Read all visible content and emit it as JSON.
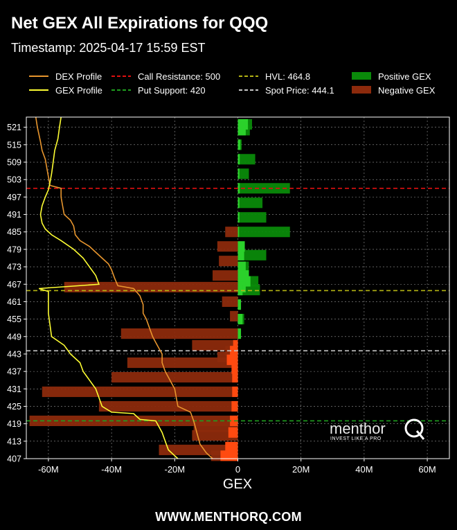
{
  "header": {
    "title": "Net GEX All Expirations for QQQ",
    "subtitle": "Timestamp: 2025-04-17 15:59 EST"
  },
  "footer": {
    "text": "WWW.MENTHORQ.COM"
  },
  "watermark": {
    "brand": "menthorQ",
    "tagline": "INVEST LIKE A PRO"
  },
  "colors": {
    "positive_gex": "#2bd12b",
    "negative_gex": "#8c2a0c",
    "dex_profile": "#e8962e",
    "gex_profile": "#ffff33",
    "call_resistance": "#e01010",
    "put_support": "#1fa01f",
    "hvl": "#b5b514",
    "spot_price": "#c8c8c8"
  },
  "chart_data": {
    "type": "bar",
    "orientation": "horizontal",
    "xlabel": "GEX",
    "ylabel": "",
    "xlim": [
      -67,
      67
    ],
    "xticks": [
      -60,
      -40,
      -20,
      0,
      20,
      40,
      60
    ],
    "xtick_labels": [
      "-60M",
      "-40M",
      "-20M",
      "0",
      "20M",
      "40M",
      "60M"
    ],
    "ylim": [
      407,
      524.5
    ],
    "yticks": [
      407,
      413,
      419,
      425,
      431,
      437,
      443,
      449,
      455,
      461,
      467,
      473,
      479,
      485,
      491,
      497,
      503,
      509,
      515,
      521
    ],
    "grid": true,
    "legend_position": "top",
    "legend": [
      {
        "label": "DEX Profile",
        "style": "line",
        "color": "#e8962e"
      },
      {
        "label": "GEX Profile",
        "style": "line",
        "color": "#ffff33"
      },
      {
        "label": "Call Resistance: 500",
        "style": "dashed",
        "color": "#e01010"
      },
      {
        "label": "Put Support: 420",
        "style": "dashed",
        "color": "#1fa01f"
      },
      {
        "label": "HVL: 464.8",
        "style": "dashed",
        "color": "#b5b514"
      },
      {
        "label": "Spot Price: 444.1",
        "style": "dashed",
        "color": "#c8c8c8"
      },
      {
        "label": "Positive GEX",
        "style": "patch",
        "color": "#0a8a0a"
      },
      {
        "label": "Negative GEX",
        "style": "patch",
        "color": "#8c2a0c"
      }
    ],
    "levels": [
      {
        "name": "Call Resistance",
        "value": 500,
        "color": "#e01010"
      },
      {
        "name": "Put Support",
        "value": 420,
        "color": "#1fa01f"
      },
      {
        "name": "HVL",
        "value": 464.8,
        "color": "#b5b514"
      },
      {
        "name": "Spot Price",
        "value": 444.1,
        "color": "#c8c8c8"
      }
    ],
    "aggregate_bars": [
      {
        "strike": 522,
        "value": 4.5
      },
      {
        "strike": 520,
        "value": 3.8
      },
      {
        "strike": 515,
        "value": 1.2
      },
      {
        "strike": 510,
        "value": 5.5
      },
      {
        "strike": 505,
        "value": 3.5
      },
      {
        "strike": 500,
        "value": 16.5
      },
      {
        "strike": 495,
        "value": 7.8
      },
      {
        "strike": 490,
        "value": 9.0
      },
      {
        "strike": 485,
        "value": 16.5
      },
      {
        "strike": 485,
        "value": -4.0
      },
      {
        "strike": 480,
        "value": -6.5
      },
      {
        "strike": 477,
        "value": 9.0
      },
      {
        "strike": 475,
        "value": -6.0
      },
      {
        "strike": 473,
        "value": 3.5
      },
      {
        "strike": 470,
        "value": -8.0
      },
      {
        "strike": 468,
        "value": 6.5
      },
      {
        "strike": 466,
        "value": -55.0
      },
      {
        "strike": 465,
        "value": 7.0
      },
      {
        "strike": 461,
        "value": -5.0
      },
      {
        "strike": 456,
        "value": -2.5
      },
      {
        "strike": 455,
        "value": 2.0
      },
      {
        "strike": 450,
        "value": -37.0
      },
      {
        "strike": 446,
        "value": -14.5
      },
      {
        "strike": 444,
        "value": -4.0
      },
      {
        "strike": 442,
        "value": -6.5
      },
      {
        "strike": 440,
        "value": -35.0
      },
      {
        "strike": 435,
        "value": -40.0
      },
      {
        "strike": 430,
        "value": -62.0
      },
      {
        "strike": 425,
        "value": -44.0
      },
      {
        "strike": 420,
        "value": -66.0
      },
      {
        "strike": 418,
        "value": -14.0
      },
      {
        "strike": 415,
        "value": -14.5
      },
      {
        "strike": 410,
        "value": -25.0
      },
      {
        "strike": 408,
        "value": -8.5
      }
    ],
    "bright_bars": [
      {
        "strike": 522,
        "value": 3.2
      },
      {
        "strike": 520,
        "value": 2.5
      },
      {
        "strike": 515,
        "value": 0.8
      },
      {
        "strike": 510,
        "value": 0.6
      },
      {
        "strike": 505,
        "value": 0.5
      },
      {
        "strike": 500,
        "value": 0.6
      },
      {
        "strike": 495,
        "value": 0.5
      },
      {
        "strike": 490,
        "value": 0.5
      },
      {
        "strike": 485,
        "value": 0.4
      },
      {
        "strike": 480,
        "value": 2.2
      },
      {
        "strike": 477,
        "value": 2.0
      },
      {
        "strike": 473,
        "value": 2.5
      },
      {
        "strike": 470,
        "value": 3.5
      },
      {
        "strike": 468,
        "value": 4.0
      },
      {
        "strike": 466,
        "value": 2.5
      },
      {
        "strike": 465,
        "value": 1.5
      },
      {
        "strike": 460,
        "value": 1.0
      },
      {
        "strike": 455,
        "value": 1.5
      },
      {
        "strike": 450,
        "value": 1.0
      },
      {
        "strike": 446,
        "value": -1.5
      },
      {
        "strike": 444,
        "value": -2.5
      },
      {
        "strike": 441,
        "value": -3.5
      },
      {
        "strike": 438,
        "value": -2.0
      },
      {
        "strike": 435,
        "value": -1.8
      },
      {
        "strike": 430,
        "value": -1.8
      },
      {
        "strike": 425,
        "value": -2.0
      },
      {
        "strike": 420,
        "value": -2.5
      },
      {
        "strike": 416,
        "value": -3.0
      },
      {
        "strike": 411,
        "value": -4.0
      },
      {
        "strike": 408,
        "value": -5.5
      }
    ],
    "dex_profile": [
      [
        -64,
        524.5
      ],
      [
        -63.5,
        521
      ],
      [
        -62.5,
        516
      ],
      [
        -62,
        513
      ],
      [
        -61,
        510
      ],
      [
        -60.5,
        507
      ],
      [
        -60,
        504
      ],
      [
        -59.5,
        501
      ],
      [
        -56,
        500
      ],
      [
        -56,
        497
      ],
      [
        -55.5,
        494
      ],
      [
        -55,
        491
      ],
      [
        -53,
        489
      ],
      [
        -52,
        487
      ],
      [
        -51.5,
        484
      ],
      [
        -50,
        482
      ],
      [
        -47,
        480
      ],
      [
        -45,
        478
      ],
      [
        -43,
        476
      ],
      [
        -41,
        474
      ],
      [
        -40,
        472
      ],
      [
        -39,
        469
      ],
      [
        -38,
        466.5
      ],
      [
        -33,
        465.5
      ],
      [
        -31,
        463
      ],
      [
        -30,
        460
      ],
      [
        -30,
        457
      ],
      [
        -29,
        455
      ],
      [
        -28,
        452
      ],
      [
        -27,
        449
      ],
      [
        -26,
        447
      ],
      [
        -25,
        445
      ],
      [
        -24,
        443
      ],
      [
        -24,
        440
      ],
      [
        -23,
        437
      ],
      [
        -22,
        435
      ],
      [
        -21,
        433
      ],
      [
        -20,
        431
      ],
      [
        -19.5,
        428
      ],
      [
        -19,
        425
      ],
      [
        -15,
        423
      ],
      [
        -14,
        420
      ],
      [
        -13,
        416
      ],
      [
        -12,
        412
      ],
      [
        -10,
        409
      ],
      [
        -8,
        407
      ]
    ],
    "gex_profile": [
      [
        -56,
        524.5
      ],
      [
        -56.5,
        521
      ],
      [
        -57,
        517
      ],
      [
        -58,
        513
      ],
      [
        -58.5,
        509
      ],
      [
        -59,
        505
      ],
      [
        -59.5,
        502
      ],
      [
        -60,
        499.5
      ],
      [
        -61,
        497
      ],
      [
        -62,
        494
      ],
      [
        -62.5,
        491
      ],
      [
        -62,
        488
      ],
      [
        -61,
        486
      ],
      [
        -59,
        484
      ],
      [
        -56,
        482
      ],
      [
        -52,
        479
      ],
      [
        -49,
        476
      ],
      [
        -47,
        473
      ],
      [
        -45,
        470
      ],
      [
        -44,
        467
      ],
      [
        -63,
        465.5
      ],
      [
        -60,
        464.5
      ],
      [
        -60,
        461
      ],
      [
        -60,
        457
      ],
      [
        -59.5,
        453
      ],
      [
        -59,
        449
      ],
      [
        -55,
        446
      ],
      [
        -53,
        443
      ],
      [
        -50,
        440
      ],
      [
        -49,
        437
      ],
      [
        -47,
        434
      ],
      [
        -45,
        431
      ],
      [
        -44,
        428
      ],
      [
        -43,
        425
      ],
      [
        -40,
        423
      ],
      [
        -33,
        422.5
      ],
      [
        -31,
        420.5
      ],
      [
        -26,
        420
      ],
      [
        -25,
        418
      ],
      [
        -24,
        416
      ],
      [
        -23,
        413
      ],
      [
        -22,
        410
      ],
      [
        -20,
        408
      ],
      [
        -19,
        407
      ]
    ]
  }
}
